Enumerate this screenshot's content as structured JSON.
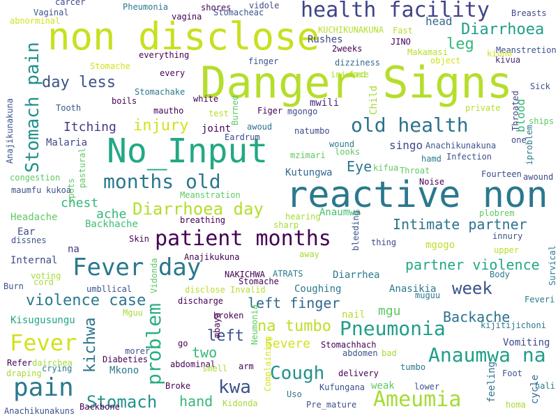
{
  "words": [
    {
      "text": "Danger Signs",
      "color": "#b5de2b"
    },
    {
      "text": "non disclose",
      "color": "#c8e020"
    },
    {
      "text": "reactive non",
      "color": "#2a788e"
    },
    {
      "text": "No_Input",
      "color": "#22a884"
    },
    {
      "text": "health facility",
      "color": "#414487"
    },
    {
      "text": "Fever day",
      "color": "#2a788e"
    },
    {
      "text": "patient months",
      "color": "#440154"
    },
    {
      "text": "old health",
      "color": "#2c728e"
    },
    {
      "text": "months old",
      "color": "#2a788e"
    },
    {
      "text": "Stomach pain",
      "color": "#21918c"
    },
    {
      "text": "Pneumonia",
      "color": "#1f9e89"
    },
    {
      "text": "Anaumwa na",
      "color": "#1f9e89"
    },
    {
      "text": "Ameumia",
      "color": "#a5db36"
    },
    {
      "text": "pain",
      "color": "#2a788e"
    },
    {
      "text": "Fever",
      "color": "#d2e21b"
    },
    {
      "text": "problem",
      "color": "#29af7f"
    },
    {
      "text": "Diarrhoea day",
      "color": "#b5de2b"
    },
    {
      "text": "Intimate partner",
      "color": "#2c728e"
    },
    {
      "text": "partner violence",
      "color": "#22a884"
    },
    {
      "text": "violence case",
      "color": "#2a788e"
    },
    {
      "text": "day less",
      "color": "#3b528b"
    },
    {
      "text": "Diarrhoea",
      "color": "#1f9e89"
    },
    {
      "text": "Cough",
      "color": "#21918c"
    },
    {
      "text": "Stomach",
      "color": "#21918c"
    },
    {
      "text": "na tumbo",
      "color": "#bddf26"
    },
    {
      "text": "left finger",
      "color": "#31688e"
    },
    {
      "text": "Backache",
      "color": "#2c728e"
    },
    {
      "text": "week",
      "color": "#3b528b"
    },
    {
      "text": "injury",
      "color": "#d2e21b"
    },
    {
      "text": "kichwa",
      "color": "#2c728e"
    },
    {
      "text": "kwa",
      "color": "#3b528b"
    },
    {
      "text": "Itching",
      "color": "#443a83"
    },
    {
      "text": "left",
      "color": "#3b528b"
    },
    {
      "text": "leg",
      "color": "#35b779"
    },
    {
      "text": "Eye",
      "color": "#2a788e"
    },
    {
      "text": "head",
      "color": "#31688e"
    },
    {
      "text": "hand",
      "color": "#35b779"
    },
    {
      "text": "chest",
      "color": "#35b779"
    },
    {
      "text": "ache",
      "color": "#35b779"
    },
    {
      "text": "two",
      "color": "#35b779"
    },
    {
      "text": "blood",
      "color": "#35b779"
    },
    {
      "text": "mgu",
      "color": "#5ec962"
    },
    {
      "text": "Severe",
      "color": "#d2e21b"
    },
    {
      "text": "Rushes",
      "color": "#3e4a89"
    },
    {
      "text": "Malaria",
      "color": "#3e4a89"
    },
    {
      "text": "joint",
      "color": "#440154"
    },
    {
      "text": "singo",
      "color": "#3e4989"
    },
    {
      "text": "Kisugusungu",
      "color": "#21a585"
    },
    {
      "text": "Backhache",
      "color": "#3fbc73"
    },
    {
      "text": "Headache",
      "color": "#5ec962"
    },
    {
      "text": "Ear",
      "color": "#3e4a89"
    },
    {
      "text": "Internal",
      "color": "#3e4a89"
    },
    {
      "text": "na",
      "color": "#46327e"
    },
    {
      "text": "mgogo",
      "color": "#bddf26"
    },
    {
      "text": "Coughing",
      "color": "#2a788e"
    },
    {
      "text": "Diarrhea",
      "color": "#2a788e"
    },
    {
      "text": "Anasikia",
      "color": "#2a788e"
    },
    {
      "text": "Vomiting",
      "color": "#3e4a89"
    },
    {
      "text": "Kutungwa",
      "color": "#31688e"
    },
    {
      "text": "Anaumwa",
      "color": "#44bf70"
    },
    {
      "text": "nail",
      "color": "#b5de2b"
    },
    {
      "text": "Mkono",
      "color": "#2a788e"
    },
    {
      "text": "weak",
      "color": "#5ec962"
    },
    {
      "text": "feeling",
      "color": "#2c728e"
    },
    {
      "text": "cycle",
      "color": "#31688e"
    },
    {
      "text": "Child",
      "color": "#a5db36"
    },
    {
      "text": "mwili",
      "color": "#482878"
    },
    {
      "text": "Anachikunakuna",
      "color": "#3b528b"
    },
    {
      "text": "Infection",
      "color": "#3b528b"
    },
    {
      "text": "Throated",
      "color": "#3e4a89"
    },
    {
      "text": "Makamasi",
      "color": "#b5de2b"
    },
    {
      "text": "dizziness",
      "color": "#31688e"
    },
    {
      "text": "Meanstretion",
      "color": "#3b528b"
    },
    {
      "text": "kivua",
      "color": "#482878"
    },
    {
      "text": "Sick",
      "color": "#3b528b"
    },
    {
      "text": "private",
      "color": "#b5de2b"
    },
    {
      "text": "Fourteen",
      "color": "#3e4a89"
    },
    {
      "text": "awound",
      "color": "#3e4a89"
    },
    {
      "text": "Breasts",
      "color": "#3e4a89"
    },
    {
      "text": "Fast",
      "color": "#b5de2b"
    },
    {
      "text": "JINO",
      "color": "#440154"
    },
    {
      "text": "KUCHIKUNAKUNA",
      "color": "#b5de2b"
    },
    {
      "text": "2weeks",
      "color": "#440154"
    },
    {
      "text": "Stomacheac",
      "color": "#3b528b"
    },
    {
      "text": "shores",
      "color": "#440154"
    },
    {
      "text": "vidole",
      "color": "#3e4a89"
    },
    {
      "text": "vagina",
      "color": "#440154"
    },
    {
      "text": "Pheumonia",
      "color": "#2a788e"
    },
    {
      "text": "carcer",
      "color": "#3e4a89"
    },
    {
      "text": "Vaginal",
      "color": "#3b528b"
    },
    {
      "text": "abnorminal",
      "color": "#d2e21b"
    },
    {
      "text": "everything",
      "color": "#440154"
    },
    {
      "text": "Stomache",
      "color": "#d2e21b"
    },
    {
      "text": "every",
      "color": "#440154"
    },
    {
      "text": "Stomachake",
      "color": "#2a788e"
    },
    {
      "text": "boils",
      "color": "#440154"
    },
    {
      "text": "white",
      "color": "#440154"
    },
    {
      "text": "Tooth",
      "color": "#3b528b"
    },
    {
      "text": "mautho",
      "color": "#440154"
    },
    {
      "text": "test",
      "color": "#b5de2b"
    },
    {
      "text": "finger",
      "color": "#3b528b"
    },
    {
      "text": "Figer",
      "color": "#440154"
    },
    {
      "text": "mgongo",
      "color": "#3e4a89"
    },
    {
      "text": "face",
      "color": "#a5db36"
    },
    {
      "text": "injured",
      "color": "#b5de2b"
    },
    {
      "text": "object",
      "color": "#d2e21b"
    },
    {
      "text": "kiuno",
      "color": "#d2e21b"
    },
    {
      "text": "Burned",
      "color": "#5ec962"
    },
    {
      "text": "awoud",
      "color": "#2c728e"
    },
    {
      "text": "Eardrum",
      "color": "#3e4a89"
    },
    {
      "text": "natumbo",
      "color": "#3e4a89"
    },
    {
      "text": "mzimari",
      "color": "#5ec962"
    },
    {
      "text": "wound",
      "color": "#2a788e"
    },
    {
      "text": "looks",
      "color": "#5ec962"
    },
    {
      "text": "kifua",
      "color": "#5ec962"
    },
    {
      "text": "Throat",
      "color": "#5ec962"
    },
    {
      "text": "hamd",
      "color": "#2a788e"
    },
    {
      "text": "one",
      "color": "#3e4a89"
    },
    {
      "text": "iproblem",
      "color": "#2a788e"
    },
    {
      "text": "ships",
      "color": "#5ec962"
    },
    {
      "text": "Noise",
      "color": "#440154"
    },
    {
      "text": "Meanstration",
      "color": "#5ec962"
    },
    {
      "text": "spots",
      "color": "#5ec962"
    },
    {
      "text": "pastural",
      "color": "#5ec962"
    },
    {
      "text": "Anajikunakuna",
      "color": "#3b528b"
    },
    {
      "text": "congestion",
      "color": "#5ec962"
    },
    {
      "text": "maumfu",
      "color": "#3b528b"
    },
    {
      "text": "kukoa",
      "color": "#3b528b"
    },
    {
      "text": "plobrem",
      "color": "#5ec962"
    },
    {
      "text": "hearing",
      "color": "#a5db36"
    },
    {
      "text": "sharp",
      "color": "#a5db36"
    },
    {
      "text": "breathing",
      "color": "#440154"
    },
    {
      "text": "Skin",
      "color": "#440154"
    },
    {
      "text": "dissnes",
      "color": "#3b528b"
    },
    {
      "text": "Anajikukuna",
      "color": "#440154"
    },
    {
      "text": "bleeding",
      "color": "#3b528b"
    },
    {
      "text": "thing",
      "color": "#3e4a89"
    },
    {
      "text": "away",
      "color": "#a5db36"
    },
    {
      "text": "innury",
      "color": "#3b528b"
    },
    {
      "text": "upper",
      "color": "#b5de2b"
    },
    {
      "text": "Survical",
      "color": "#2a788e"
    },
    {
      "text": "Body",
      "color": "#2a788e"
    },
    {
      "text": "Feveri",
      "color": "#2a788e"
    },
    {
      "text": "ATRATS",
      "color": "#2a788e"
    },
    {
      "text": "NAKICHWA",
      "color": "#440154"
    },
    {
      "text": "Stomache",
      "color": "#440154"
    },
    {
      "text": "muguu",
      "color": "#2a788e"
    },
    {
      "text": "disclose Invalid",
      "color": "#b5de2b"
    },
    {
      "text": "discharge",
      "color": "#440154"
    },
    {
      "text": "kijitijichoni",
      "color": "#2a788e"
    },
    {
      "text": "voting",
      "color": "#a5db36"
    },
    {
      "text": "cord",
      "color": "#a5db36"
    },
    {
      "text": "Burn",
      "color": "#3b528b"
    },
    {
      "text": "umbllical",
      "color": "#3b528b"
    },
    {
      "text": "Vidonda",
      "color": "#5ec962"
    },
    {
      "text": "Mguu",
      "color": "#a5db36"
    },
    {
      "text": "broken",
      "color": "#440154"
    },
    {
      "text": "mbaya",
      "color": "#440154"
    },
    {
      "text": "Neumonia",
      "color": "#5ec962"
    },
    {
      "text": "Stomachhach",
      "color": "#440154"
    },
    {
      "text": "abdomen",
      "color": "#3b528b"
    },
    {
      "text": "bad",
      "color": "#a5db36"
    },
    {
      "text": "morer",
      "color": "#3b528b"
    },
    {
      "text": "Diabeties",
      "color": "#440154"
    },
    {
      "text": "Refer",
      "color": "#440154"
    },
    {
      "text": "dairchea",
      "color": "#a5db36"
    },
    {
      "text": "draping",
      "color": "#a5db36"
    },
    {
      "text": "crying",
      "color": "#2a788e"
    },
    {
      "text": "go",
      "color": "#440154"
    },
    {
      "text": "abdominal",
      "color": "#440154"
    },
    {
      "text": "smell",
      "color": "#a5db36"
    },
    {
      "text": "arm",
      "color": "#440154"
    },
    {
      "text": "Complaining",
      "color": "#d2e21b"
    },
    {
      "text": "delivery",
      "color": "#440154"
    },
    {
      "text": "tumbo",
      "color": "#2a788e"
    },
    {
      "text": "Foot",
      "color": "#3b528b"
    },
    {
      "text": "hali",
      "color": "#2a788e"
    },
    {
      "text": "Backbone",
      "color": "#440154"
    },
    {
      "text": "Broke",
      "color": "#440154"
    },
    {
      "text": "Kidonda",
      "color": "#a5db36"
    },
    {
      "text": "Uso",
      "color": "#2a788e"
    },
    {
      "text": "Kufungana",
      "color": "#3b528b"
    },
    {
      "text": "lower",
      "color": "#3b528b"
    },
    {
      "text": "Pre_mature",
      "color": "#3b528b"
    },
    {
      "text": "homa",
      "color": "#a5db36"
    },
    {
      "text": "Anachikunakuns",
      "color": "#3b528b"
    }
  ]
}
